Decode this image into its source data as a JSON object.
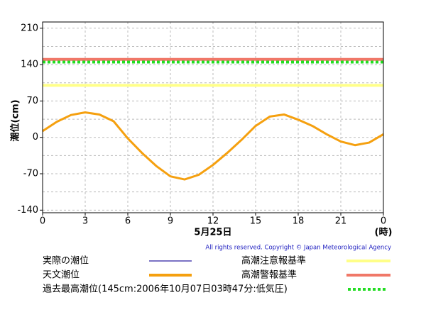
{
  "chart_data": {
    "type": "line",
    "x_label": "5月25日",
    "x_unit": "(時)",
    "y_label": "潮位(cm)",
    "copyright": "All rights reserved. Copyright © Japan Meteorological Agency",
    "x": [
      0,
      1,
      2,
      3,
      4,
      5,
      6,
      7,
      8,
      9,
      10,
      11,
      12,
      13,
      14,
      15,
      16,
      17,
      18,
      19,
      20,
      21,
      22,
      23,
      24
    ],
    "series": [
      {
        "name": "実際の潮位",
        "color": "#2a1fa0",
        "style": "solid",
        "values": [
          null,
          null,
          null,
          null,
          null,
          null,
          null,
          null,
          null,
          null,
          null,
          null,
          null,
          null,
          null,
          null,
          null,
          null,
          null,
          null,
          null,
          null,
          null,
          null,
          null
        ]
      },
      {
        "name": "天文潮位",
        "color": "#f5a00f",
        "style": "solid",
        "values": [
          12,
          30,
          43,
          48,
          44,
          31,
          -2,
          -30,
          -55,
          -75,
          -81,
          -72,
          -53,
          -30,
          -5,
          22,
          40,
          44,
          34,
          22,
          6,
          -8,
          -15,
          -10,
          6
        ]
      }
    ],
    "reference_lines": [
      {
        "name": "高潮注意報基準",
        "color": "#ffff88",
        "style": "solid",
        "value": 100
      },
      {
        "name": "高潮警報基準",
        "color": "#f07868",
        "style": "solid",
        "value": 150
      },
      {
        "name": "過去最高潮位(145cm:2006年10月07日03時47分:低気圧)",
        "color": "#22dd22",
        "style": "dotted",
        "value": 145
      }
    ],
    "xlim": [
      0,
      24
    ],
    "xticks": [
      0,
      3,
      6,
      9,
      12,
      15,
      18,
      21,
      {
        "value": 24,
        "label": "0"
      }
    ],
    "ylim": [
      -145,
      222
    ],
    "yticks": [
      -140,
      -70,
      0,
      70,
      140,
      210
    ],
    "ygrid": [
      -105,
      -35,
      35,
      105,
      175
    ],
    "grid": true
  }
}
